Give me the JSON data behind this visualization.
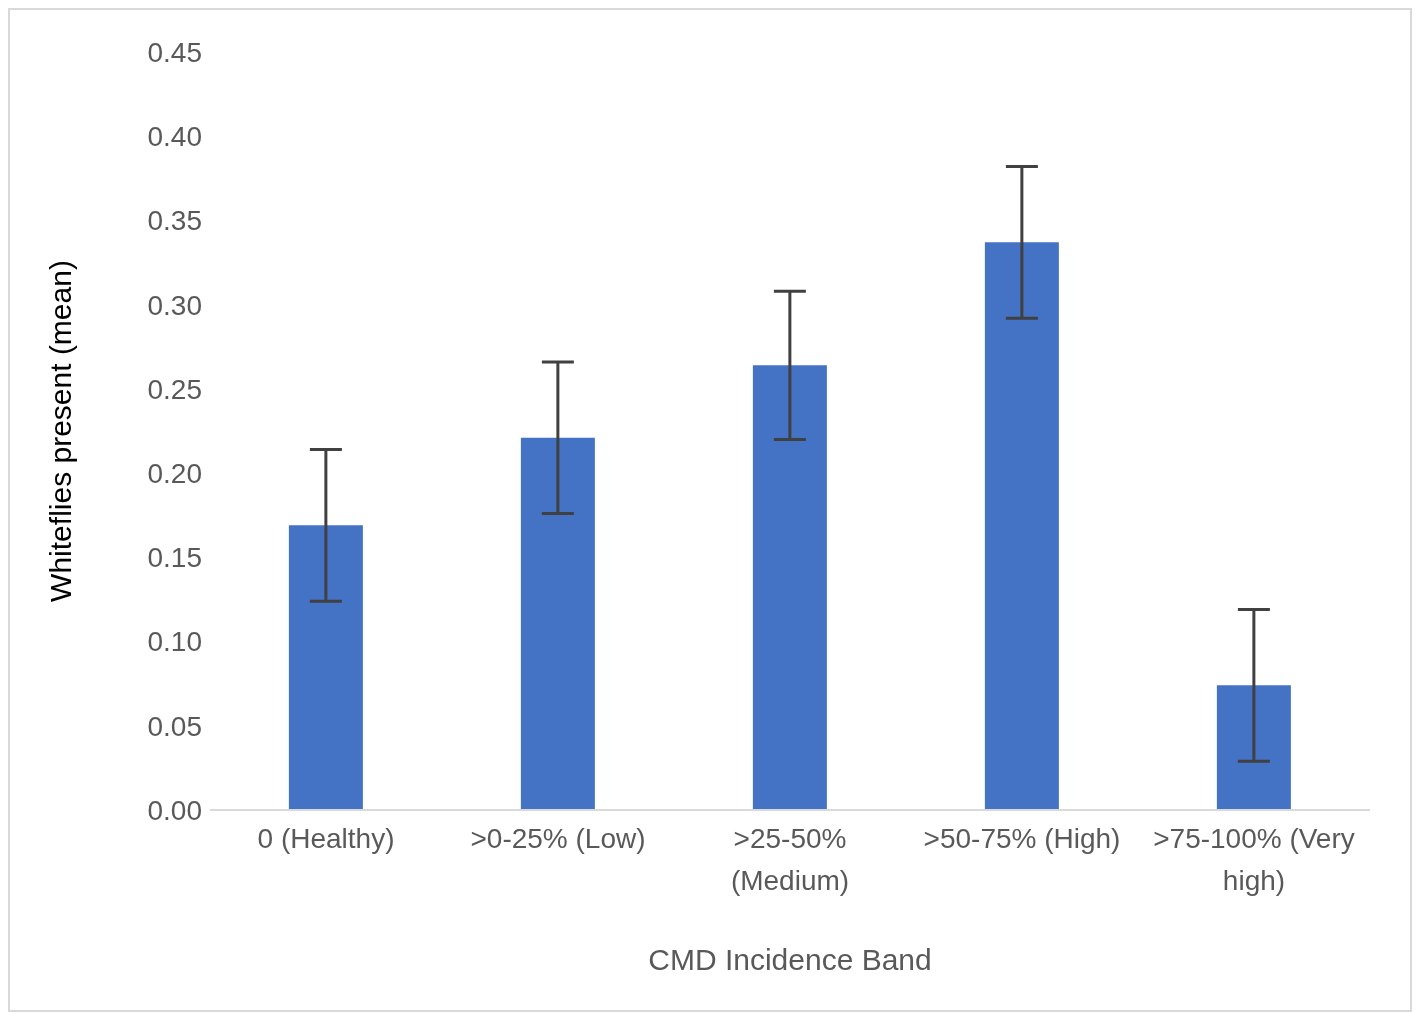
{
  "chart_data": {
    "type": "bar",
    "xlabel": "CMD Incidence Band",
    "ylabel": "Whiteflies present (mean)",
    "categories": [
      "0 (Healthy)",
      ">0-25% (Low)",
      ">25-50% (Medium)",
      ">50-75% (High)",
      ">75-100% (Very high)"
    ],
    "values": [
      0.169,
      0.221,
      0.264,
      0.337,
      0.074
    ],
    "errors": [
      0.045,
      0.045,
      0.044,
      0.045,
      0.045
    ],
    "color": "#4472c4",
    "ylim": [
      0,
      0.45
    ],
    "yticks": [
      {
        "value": 0,
        "label": "0.00"
      },
      {
        "value": 0.05,
        "label": "0.05"
      },
      {
        "value": 0.1,
        "label": "0.10"
      },
      {
        "value": 0.15,
        "label": "0.15"
      },
      {
        "value": 0.2,
        "label": "0.20"
      },
      {
        "value": 0.25,
        "label": "0.25"
      },
      {
        "value": 0.3,
        "label": "0.30"
      },
      {
        "value": 0.35,
        "label": "0.35"
      },
      {
        "value": 0.4,
        "label": "0.40"
      },
      {
        "value": 0.45,
        "label": "0.45"
      }
    ]
  }
}
